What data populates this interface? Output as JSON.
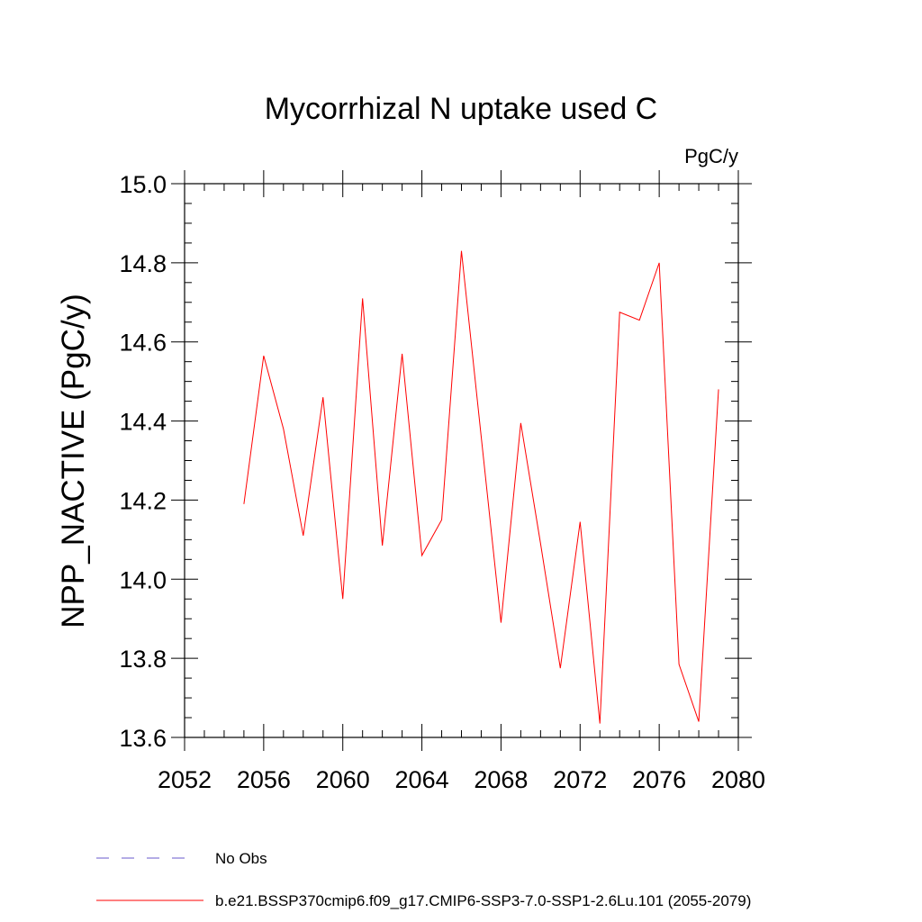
{
  "chart_data": {
    "type": "line",
    "title": "Mycorrhizal N uptake used C",
    "units": "PgC/y",
    "ylabel": "NPP_NACTIVE  (PgC/y)",
    "xlabel": "",
    "xlim": [
      2052,
      2080
    ],
    "ylim": [
      13.6,
      15.0
    ],
    "xticks": [
      2052,
      2056,
      2060,
      2064,
      2068,
      2072,
      2076,
      2080
    ],
    "yticks": [
      13.6,
      13.8,
      14.0,
      14.2,
      14.4,
      14.6,
      14.8,
      15.0
    ],
    "ytick_labels": [
      "13.6",
      "13.8",
      "14.0",
      "14.2",
      "14.4",
      "14.6",
      "14.8",
      "15.0"
    ],
    "grid": false,
    "legend_position": "bottom",
    "series": [
      {
        "name": "b.e21.BSSP370cmip6.f09_g17.CMIP6-SSP3-7.0-SSP1-2.6Lu.101 (2055-2079)",
        "color": "#ff0000",
        "style": "solid",
        "x": [
          2055,
          2056,
          2057,
          2058,
          2059,
          2060,
          2061,
          2062,
          2063,
          2064,
          2065,
          2066,
          2067,
          2068,
          2069,
          2070,
          2071,
          2072,
          2073,
          2074,
          2075,
          2076,
          2077,
          2078,
          2079
        ],
        "values": [
          14.19,
          14.565,
          14.38,
          14.11,
          14.46,
          13.95,
          14.71,
          14.085,
          14.57,
          14.06,
          14.15,
          14.83,
          14.36,
          13.89,
          14.395,
          14.09,
          13.775,
          14.145,
          13.635,
          14.675,
          14.655,
          14.8,
          13.785,
          13.64,
          14.48
        ]
      }
    ],
    "legend": [
      {
        "label": "No Obs",
        "color": "#6a5acd",
        "style": "dashed"
      },
      {
        "label": "b.e21.BSSP370cmip6.f09_g17.CMIP6-SSP3-7.0-SSP1-2.6Lu.101 (2055-2079)",
        "color": "#ff0000",
        "style": "solid"
      }
    ]
  }
}
